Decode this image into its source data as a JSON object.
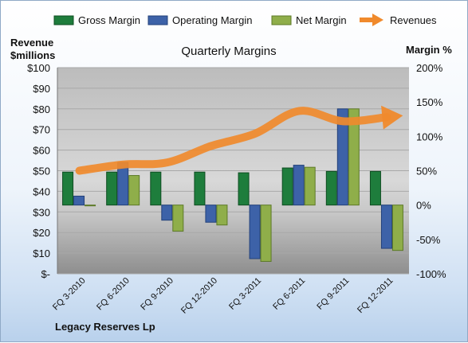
{
  "chart_data": {
    "type": "bar",
    "title": "Quarterly Margins",
    "footer": "Legacy Reserves Lp",
    "left_axis": {
      "title_line1": "Revenue",
      "title_line2": "$millions",
      "ylim": [
        0,
        100
      ],
      "ticks": [
        "$-",
        "$10",
        "$20",
        "$30",
        "$40",
        "$50",
        "$60",
        "$70",
        "$80",
        "$90",
        "$100"
      ]
    },
    "right_axis": {
      "title": "Margin %",
      "ylim": [
        -100,
        200
      ],
      "ticks": [
        "-100%",
        "-50%",
        "0%",
        "50%",
        "100%",
        "150%",
        "200%"
      ]
    },
    "categories": [
      "FQ 3-2010",
      "FQ 6-2010",
      "FQ 9-2010",
      "FQ 12-2010",
      "FQ 3-2011",
      "FQ 6-2011",
      "FQ 9-2011",
      "FQ 12-2011"
    ],
    "series": [
      {
        "name": "Gross Margin",
        "axis": "right",
        "color": "#1e7d3c",
        "values": [
          48,
          48,
          48,
          48,
          47,
          54,
          49,
          49
        ]
      },
      {
        "name": "Operating Margin",
        "axis": "right",
        "color": "#3d62a8",
        "values": [
          13,
          62,
          -22,
          -25,
          -78,
          58,
          140,
          -63
        ]
      },
      {
        "name": "Net Margin",
        "axis": "right",
        "color": "#8fae4a",
        "values": [
          -1,
          43,
          -38,
          -29,
          -82,
          55,
          140,
          -66
        ]
      },
      {
        "name": "Revenues",
        "axis": "left",
        "type": "line",
        "color": "#f08a2c",
        "values": [
          50,
          53,
          54,
          62,
          68,
          79,
          74,
          76
        ]
      }
    ],
    "legend_position": "top"
  }
}
